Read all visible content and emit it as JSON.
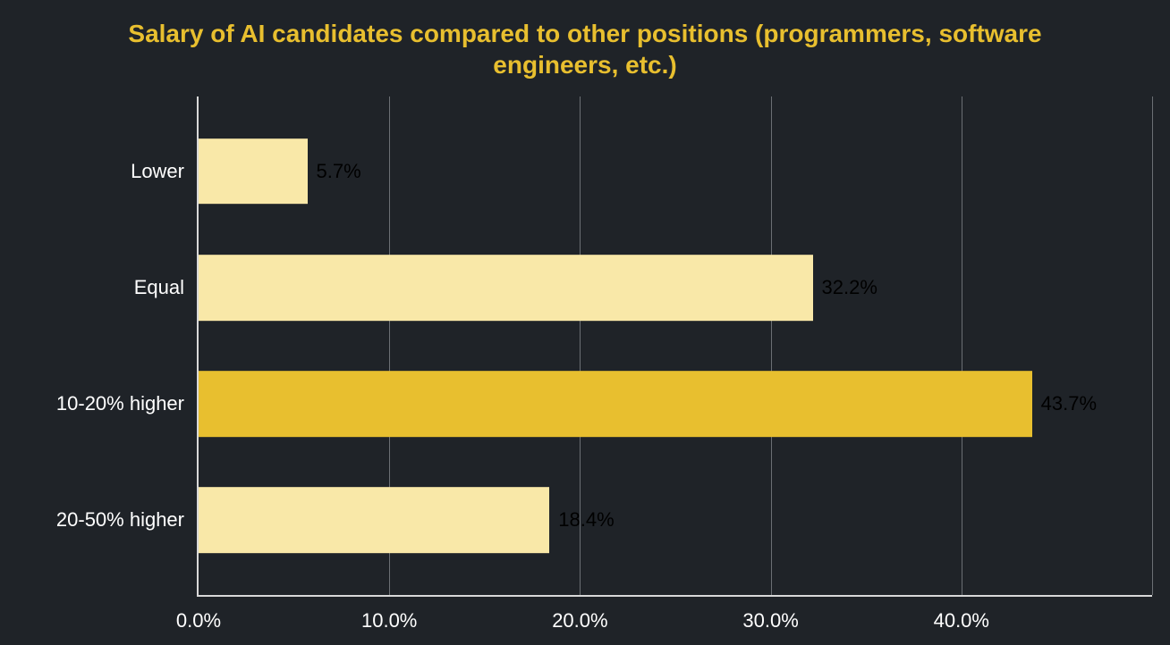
{
  "chart": {
    "type": "bar-horizontal",
    "title": "Salary of AI candidates compared to other positions (programmers, software engineers, etc.)",
    "title_color": "#e8bf2f",
    "title_fontsize": 28,
    "title_fontweight": 700,
    "background_color": "#1f2328",
    "axis_color": "#d8d8d8",
    "grid_color": "#6b6f74",
    "label_color": "#ffffff",
    "label_fontsize": 22,
    "value_label_color": "#000000",
    "value_label_fontsize": 22,
    "bar_height_pct": 13.2,
    "xlim": [
      0,
      50
    ],
    "x_ticks": [
      {
        "value": 0,
        "label": "0.0%"
      },
      {
        "value": 10,
        "label": "10.0%"
      },
      {
        "value": 20,
        "label": "20.0%"
      },
      {
        "value": 30,
        "label": "30.0%"
      },
      {
        "value": 40,
        "label": "40.0%"
      }
    ],
    "grid_at": [
      10,
      20,
      30,
      40,
      50
    ],
    "bars": [
      {
        "category": "Lower",
        "value": 5.7,
        "value_label": "5.7%",
        "color": "#f9e8a8",
        "center_pct": 15
      },
      {
        "category": "Equal",
        "value": 32.2,
        "value_label": "32.2%",
        "color": "#f9e8a8",
        "center_pct": 38.33
      },
      {
        "category": "10-20% higher",
        "value": 43.7,
        "value_label": "43.7%",
        "color": "#e8bf2f",
        "center_pct": 61.67
      },
      {
        "category": "20-50% higher",
        "value": 18.4,
        "value_label": "18.4%",
        "color": "#f9e8a8",
        "center_pct": 85
      }
    ]
  }
}
